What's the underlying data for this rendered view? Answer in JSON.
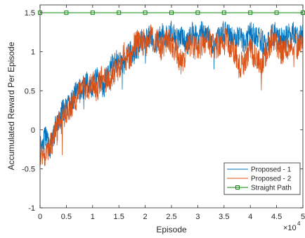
{
  "chart_data": {
    "type": "line",
    "xlabel": "Episode",
    "ylabel": "Accumulated Reward Per Episode",
    "x_exponent_label": "×10",
    "x_exponent_power": "4",
    "xlim": [
      0,
      50000
    ],
    "ylim": [
      -1,
      1.6
    ],
    "x_ticks": [
      0,
      5000,
      10000,
      15000,
      20000,
      25000,
      30000,
      35000,
      40000,
      45000,
      50000
    ],
    "x_tick_labels": [
      "0",
      "0.5",
      "1",
      "1.5",
      "2",
      "2.5",
      "3",
      "3.5",
      "4",
      "4.5",
      "5"
    ],
    "y_ticks": [
      -1,
      -0.5,
      0,
      0.5,
      1,
      1.5
    ],
    "y_tick_labels": [
      "-1",
      "-0.5",
      "0",
      "0.5",
      "1",
      "1.5"
    ],
    "grid": false,
    "legend_position": "bottom-right",
    "series": [
      {
        "name": "Proposed - 1",
        "color": "#0072BD",
        "marker": "none",
        "noise": 0.07,
        "x": [
          0,
          1000,
          2000,
          3000,
          4000,
          5000,
          6000,
          7000,
          8000,
          9000,
          10000,
          11000,
          12000,
          13000,
          14000,
          15000,
          16000,
          17000,
          18000,
          19000,
          20000,
          21000,
          22000,
          23000,
          24000,
          25000,
          26000,
          27000,
          28000,
          29000,
          30000,
          31000,
          32000,
          33000,
          34000,
          35000,
          36000,
          37000,
          38000,
          39000,
          40000,
          41000,
          42000,
          43000,
          44000,
          45000,
          46000,
          47000,
          48000,
          49000,
          50000
        ],
        "values": [
          -0.2,
          -0.1,
          -0.25,
          0.05,
          0.2,
          0.3,
          0.35,
          0.5,
          0.55,
          0.6,
          0.55,
          0.7,
          0.5,
          0.75,
          0.85,
          0.9,
          0.85,
          1.05,
          0.95,
          1.1,
          1.15,
          1.2,
          1.1,
          1.25,
          1.2,
          1.25,
          1.15,
          1.2,
          1.1,
          1.25,
          1.15,
          1.3,
          1.2,
          1.1,
          1.2,
          1.25,
          1.2,
          1.15,
          1.2,
          1.1,
          1.25,
          1.2,
          1.15,
          1.05,
          1.2,
          1.25,
          1.15,
          1.2,
          1.25,
          1.2,
          1.25
        ]
      },
      {
        "name": "Proposed - 2",
        "color": "#D95319",
        "marker": "none",
        "noise": 0.08,
        "x": [
          0,
          1000,
          2000,
          3000,
          4000,
          5000,
          6000,
          7000,
          8000,
          9000,
          10000,
          11000,
          12000,
          13000,
          14000,
          15000,
          16000,
          17000,
          18000,
          19000,
          20000,
          21000,
          22000,
          23000,
          24000,
          25000,
          26000,
          27000,
          28000,
          29000,
          30000,
          31000,
          32000,
          33000,
          34000,
          35000,
          36000,
          37000,
          38000,
          39000,
          40000,
          41000,
          42000,
          43000,
          44000,
          45000,
          46000,
          47000,
          48000,
          49000,
          50000
        ],
        "values": [
          -0.3,
          -0.3,
          -0.2,
          0.0,
          0.1,
          0.25,
          0.3,
          0.4,
          0.5,
          0.55,
          0.6,
          0.55,
          0.7,
          0.6,
          0.75,
          0.8,
          0.95,
          0.9,
          1.1,
          1.15,
          1.1,
          1.2,
          1.15,
          1.05,
          1.15,
          1.1,
          1.0,
          0.85,
          1.05,
          1.1,
          1.0,
          1.1,
          1.15,
          1.05,
          1.1,
          1.15,
          1.1,
          1.0,
          0.8,
          0.9,
          1.05,
          0.9,
          0.85,
          1.0,
          1.15,
          1.1,
          1.0,
          1.05,
          1.1,
          1.05,
          1.1
        ]
      },
      {
        "name": "Straight Path",
        "color": "#0E8A0E",
        "marker": "square",
        "x": [
          0,
          5000,
          10000,
          15000,
          20000,
          25000,
          30000,
          35000,
          40000,
          45000,
          50000
        ],
        "values": [
          1.5,
          1.5,
          1.5,
          1.5,
          1.5,
          1.5,
          1.5,
          1.5,
          1.5,
          1.5,
          1.5
        ]
      }
    ]
  }
}
